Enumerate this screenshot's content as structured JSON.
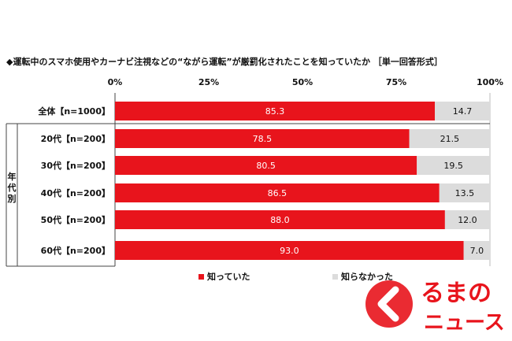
{
  "chart_data": {
    "type": "bar",
    "title": "◆運転中のスマホ使用やカーナビ注視などの“ながら運転”が厳罰化されたことを知っていたか ［単一回答形式］",
    "xlim": [
      0,
      100
    ],
    "x_ticks": [
      "0%",
      "25%",
      "50%",
      "75%",
      "100%"
    ],
    "stacked": true,
    "orientation": "horizontal",
    "categories": [
      "全体【n=1000】",
      "20代【n=200】",
      "30代【n=200】",
      "40代【n=200】",
      "50代【n=200】",
      "60代【n=200】"
    ],
    "group_label": "年代別",
    "series": [
      {
        "name": "知っていた",
        "values": [
          85.3,
          78.5,
          80.5,
          86.5,
          88.0,
          93.0
        ],
        "labels": [
          "85.3",
          "78.5",
          "80.5",
          "86.5",
          "88.0",
          "93.0"
        ],
        "color": "#e8141c"
      },
      {
        "name": "知らなかった",
        "values": [
          14.7,
          21.5,
          19.5,
          13.5,
          12.0,
          7.0
        ],
        "labels": [
          "14.7",
          "21.5",
          "19.5",
          "13.5",
          "12.0",
          "7.0"
        ],
        "color": "#dcdcdc"
      }
    ],
    "legend_position": "bottom"
  },
  "logo": {
    "text_top": "るまの",
    "text_bottom": "ニュース"
  }
}
